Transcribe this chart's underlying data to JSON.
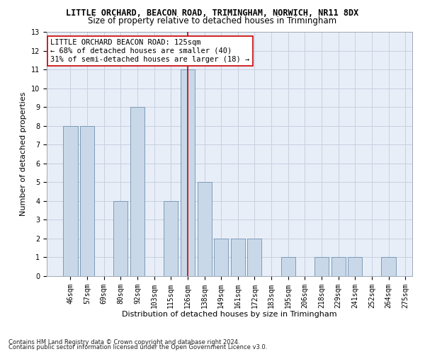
{
  "title": "LITTLE ORCHARD, BEACON ROAD, TRIMINGHAM, NORWICH, NR11 8DX",
  "subtitle": "Size of property relative to detached houses in Trimingham",
  "xlabel": "Distribution of detached houses by size in Trimingham",
  "ylabel": "Number of detached properties",
  "footnote1": "Contains HM Land Registry data © Crown copyright and database right 2024.",
  "footnote2": "Contains public sector information licensed under the Open Government Licence v3.0.",
  "bins": [
    "46sqm",
    "57sqm",
    "69sqm",
    "80sqm",
    "92sqm",
    "103sqm",
    "115sqm",
    "126sqm",
    "138sqm",
    "149sqm",
    "161sqm",
    "172sqm",
    "183sqm",
    "195sqm",
    "206sqm",
    "218sqm",
    "229sqm",
    "241sqm",
    "252sqm",
    "264sqm",
    "275sqm"
  ],
  "values": [
    8,
    8,
    0,
    4,
    9,
    0,
    4,
    11,
    5,
    2,
    2,
    2,
    0,
    1,
    0,
    1,
    1,
    1,
    0,
    1
  ],
  "bar_color": "#c8d8e8",
  "bar_edge_color": "#7090b0",
  "highlight_index": 7,
  "highlight_color": "#cc0000",
  "ylim": [
    0,
    13
  ],
  "yticks": [
    0,
    1,
    2,
    3,
    4,
    5,
    6,
    7,
    8,
    9,
    10,
    11,
    12,
    13
  ],
  "annotation_line1": "LITTLE ORCHARD BEACON ROAD: 125sqm",
  "annotation_line2": "← 68% of detached houses are smaller (40)",
  "annotation_line3": "31% of semi-detached houses are larger (18) →",
  "annotation_box_color": "#ffffff",
  "annotation_box_edge": "#cc0000",
  "bg_color": "#ffffff",
  "plot_bg_color": "#e8eef8",
  "grid_color": "#c8d0e0",
  "title_fontsize": 8.5,
  "subtitle_fontsize": 8.5,
  "label_fontsize": 8,
  "tick_fontsize": 7,
  "annotation_fontsize": 7.5,
  "footnote_fontsize": 6
}
